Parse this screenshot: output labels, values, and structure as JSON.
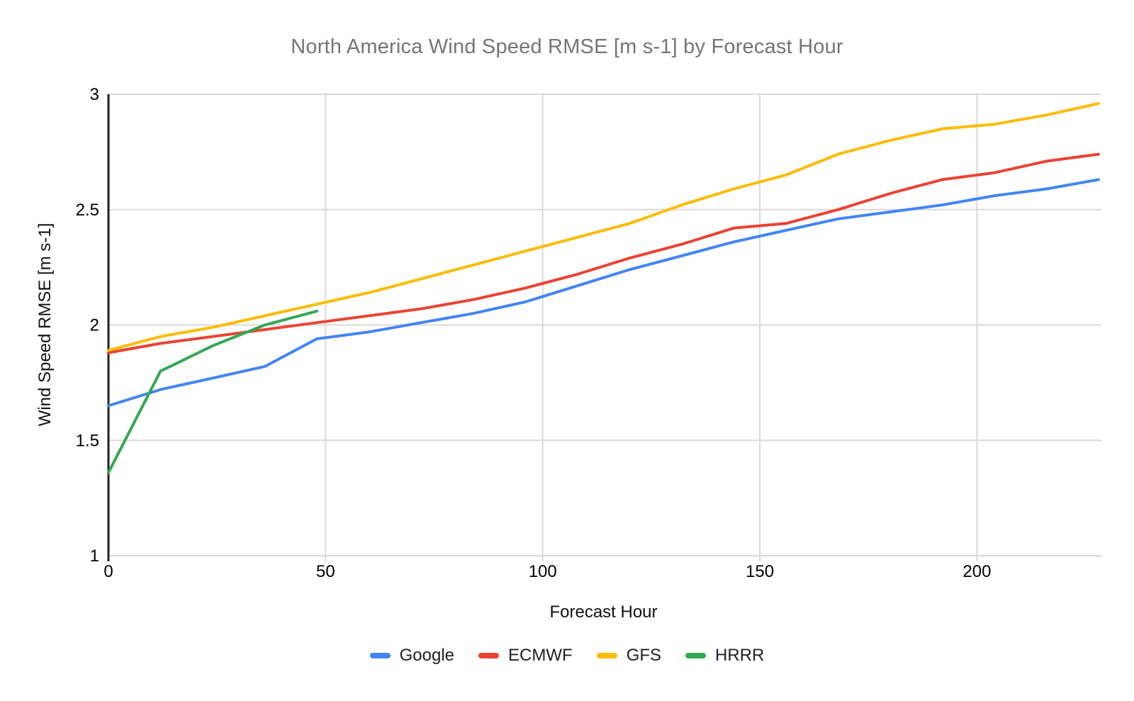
{
  "chart_data": {
    "type": "line",
    "title": "North America Wind Speed RMSE [m s-1] by Forecast Hour",
    "xlabel": "Forecast Hour",
    "ylabel": "Wind Speed RMSE [m s-1]",
    "xlim": [
      0,
      228
    ],
    "ylim": [
      1,
      3
    ],
    "x_ticks": [
      0,
      50,
      100,
      150,
      200
    ],
    "y_ticks": [
      1,
      1.5,
      2,
      2.5,
      3
    ],
    "grid": true,
    "legend_position": "bottom",
    "series": [
      {
        "name": "Google",
        "color": "#4285F4",
        "x": [
          0,
          12,
          24,
          36,
          48,
          60,
          72,
          84,
          96,
          108,
          120,
          132,
          144,
          156,
          168,
          180,
          192,
          204,
          216,
          228
        ],
        "values": [
          1.65,
          1.72,
          1.77,
          1.82,
          1.94,
          1.97,
          2.01,
          2.05,
          2.1,
          2.17,
          2.24,
          2.3,
          2.36,
          2.41,
          2.46,
          2.49,
          2.52,
          2.56,
          2.59,
          2.63
        ]
      },
      {
        "name": "ECMWF",
        "color": "#EA4335",
        "x": [
          0,
          12,
          24,
          36,
          48,
          60,
          72,
          84,
          96,
          108,
          120,
          132,
          144,
          156,
          168,
          180,
          192,
          204,
          216,
          228
        ],
        "values": [
          1.88,
          1.92,
          1.95,
          1.98,
          2.01,
          2.04,
          2.07,
          2.11,
          2.16,
          2.22,
          2.29,
          2.35,
          2.42,
          2.44,
          2.5,
          2.57,
          2.63,
          2.66,
          2.71,
          2.74
        ]
      },
      {
        "name": "GFS",
        "color": "#FBBC04",
        "x": [
          0,
          12,
          24,
          36,
          48,
          60,
          72,
          84,
          96,
          108,
          120,
          132,
          144,
          156,
          168,
          180,
          192,
          204,
          216,
          228
        ],
        "values": [
          1.89,
          1.95,
          1.99,
          2.04,
          2.09,
          2.14,
          2.2,
          2.26,
          2.32,
          2.38,
          2.44,
          2.52,
          2.59,
          2.65,
          2.74,
          2.8,
          2.85,
          2.87,
          2.91,
          2.96
        ]
      },
      {
        "name": "HRRR",
        "color": "#34A853",
        "x": [
          0,
          12,
          24,
          36,
          48
        ],
        "values": [
          1.36,
          1.8,
          1.91,
          2.0,
          2.06
        ]
      }
    ],
    "style": {
      "gridline_color": "#d9d9d9",
      "axis_line_color": "#222222",
      "tick_label_color": "#000000",
      "title_color": "#757575",
      "line_width": 4
    }
  }
}
